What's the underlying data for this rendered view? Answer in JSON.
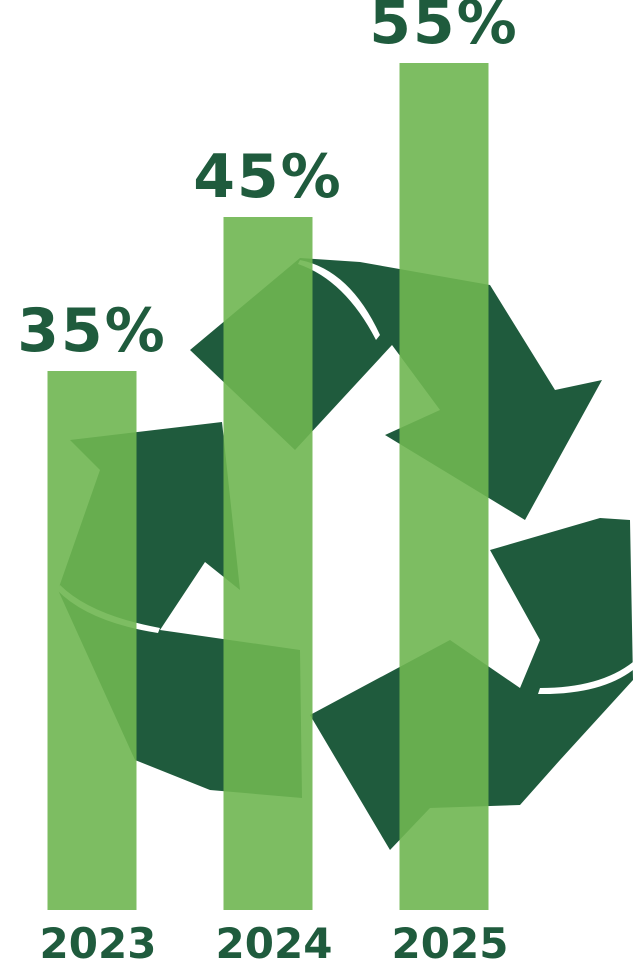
{
  "chart_data": {
    "type": "bar",
    "categories": [
      "2023",
      "2024",
      "2025"
    ],
    "values": [
      35,
      45,
      55
    ],
    "value_labels": [
      "35%",
      "45%",
      "55%"
    ],
    "color": "#6fb651"
  }
}
